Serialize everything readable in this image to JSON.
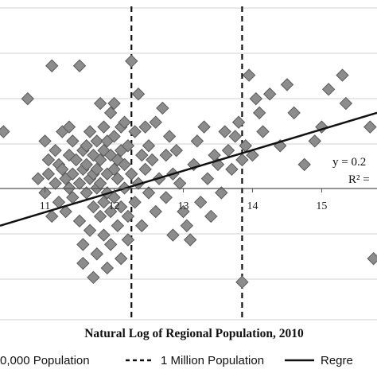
{
  "chart_data": {
    "type": "scatter",
    "xlabel": "Natural Log of Regional Population, 2010",
    "x_ticks": [
      "11",
      "12",
      "13",
      "14",
      "15"
    ],
    "xlim": [
      10.35,
      15.8
    ],
    "ylim": [
      -1.45,
      1.95
    ],
    "grid": "horizontal",
    "reference_lines": [
      {
        "name": "1 Million Population",
        "x": 12.25,
        "style": "dashed"
      },
      {
        "name": "",
        "x": 13.85,
        "style": "dashed"
      }
    ],
    "regression": {
      "name": "Regression",
      "x": [
        10.35,
        15.8
      ],
      "y": [
        -0.45,
        0.75
      ]
    },
    "annotations": [
      "y = 0.2",
      "R² ="
    ],
    "legend": {
      "position": "bottom",
      "entries": [
        {
          "label": "0,000 Population",
          "style": "marker"
        },
        {
          "label": "1 Million Population",
          "style": "dashed"
        },
        {
          "label": "Regre",
          "style": "solid"
        }
      ]
    },
    "colors": {
      "marker_fill": "#8c8c8c",
      "marker_stroke": "#5a5a5a",
      "line": "#111111",
      "grid": "#d0d0d0"
    },
    "series": [
      {
        "name": "",
        "points": [
          [
            10.4,
            0.55
          ],
          [
            10.75,
            0.9
          ],
          [
            10.9,
            0.05
          ],
          [
            11.0,
            -0.1
          ],
          [
            11.0,
            0.45
          ],
          [
            11.05,
            0.25
          ],
          [
            11.05,
            0.1
          ],
          [
            11.1,
            1.25
          ],
          [
            11.1,
            -0.35
          ],
          [
            11.15,
            0.35
          ],
          [
            11.15,
            0.0
          ],
          [
            11.2,
            0.2
          ],
          [
            11.2,
            -0.2
          ],
          [
            11.25,
            0.55
          ],
          [
            11.25,
            0.15
          ],
          [
            11.3,
            -0.3
          ],
          [
            11.3,
            0.05
          ],
          [
            11.35,
            0.3
          ],
          [
            11.35,
            -0.05
          ],
          [
            11.35,
            0.6
          ],
          [
            11.4,
            0.45
          ],
          [
            11.4,
            -0.15
          ],
          [
            11.4,
            0.1
          ],
          [
            11.45,
            0.25
          ],
          [
            11.5,
            0.0
          ],
          [
            11.5,
            -0.4
          ],
          [
            11.5,
            1.25
          ],
          [
            11.55,
            0.15
          ],
          [
            11.55,
            -0.65
          ],
          [
            11.55,
            0.35
          ],
          [
            11.55,
            -0.85
          ],
          [
            11.6,
            0.4
          ],
          [
            11.6,
            0.2
          ],
          [
            11.6,
            -0.1
          ],
          [
            11.65,
            0.05
          ],
          [
            11.65,
            -0.5
          ],
          [
            11.65,
            0.55
          ],
          [
            11.7,
            0.3
          ],
          [
            11.7,
            -0.25
          ],
          [
            11.7,
            0.1
          ],
          [
            11.7,
            -1.0
          ],
          [
            11.75,
            0.45
          ],
          [
            11.75,
            0.15
          ],
          [
            11.75,
            -0.05
          ],
          [
            11.75,
            -0.75
          ],
          [
            11.8,
            0.85
          ],
          [
            11.8,
            0.25
          ],
          [
            11.8,
            -0.35
          ],
          [
            11.8,
            0.0
          ],
          [
            11.85,
            0.35
          ],
          [
            11.85,
            -0.2
          ],
          [
            11.85,
            0.6
          ],
          [
            11.85,
            -0.55
          ],
          [
            11.9,
            0.1
          ],
          [
            11.9,
            0.45
          ],
          [
            11.9,
            -0.1
          ],
          [
            11.9,
            -0.9
          ],
          [
            11.95,
            0.3
          ],
          [
            11.95,
            0.75
          ],
          [
            11.95,
            -0.3
          ],
          [
            11.95,
            -0.65
          ],
          [
            12.0,
            0.5
          ],
          [
            12.0,
            0.15
          ],
          [
            12.0,
            -0.15
          ],
          [
            12.0,
            0.85
          ],
          [
            12.05,
            0.25
          ],
          [
            12.05,
            -0.45
          ],
          [
            12.05,
            0.05
          ],
          [
            12.1,
            0.6
          ],
          [
            12.1,
            -0.25
          ],
          [
            12.1,
            0.35
          ],
          [
            12.1,
            -0.8
          ],
          [
            12.15,
            0.2
          ],
          [
            12.15,
            0.65
          ],
          [
            12.15,
            -0.05
          ],
          [
            12.2,
            0.4
          ],
          [
            12.2,
            -0.35
          ],
          [
            12.2,
            -0.6
          ],
          [
            12.25,
            1.3
          ],
          [
            12.25,
            0.1
          ],
          [
            12.3,
            0.55
          ],
          [
            12.3,
            -0.2
          ],
          [
            12.35,
            0.95
          ],
          [
            12.35,
            0.0
          ],
          [
            12.4,
            0.3
          ],
          [
            12.4,
            -0.45
          ],
          [
            12.45,
            0.15
          ],
          [
            12.45,
            0.6
          ],
          [
            12.5,
            -0.1
          ],
          [
            12.5,
            0.4
          ],
          [
            12.55,
            0.25
          ],
          [
            12.6,
            -0.3
          ],
          [
            12.6,
            0.65
          ],
          [
            12.65,
            0.05
          ],
          [
            12.7,
            0.8
          ],
          [
            12.75,
            0.3
          ],
          [
            12.75,
            -0.15
          ],
          [
            12.8,
            0.5
          ],
          [
            12.85,
            0.1
          ],
          [
            12.85,
            -0.55
          ],
          [
            12.9,
            0.35
          ],
          [
            12.95,
            0.0
          ],
          [
            13.0,
            -0.3
          ],
          [
            13.05,
            -0.45
          ],
          [
            13.1,
            -0.6
          ],
          [
            13.15,
            0.2
          ],
          [
            13.2,
            0.45
          ],
          [
            13.25,
            -0.2
          ],
          [
            13.3,
            0.6
          ],
          [
            13.35,
            0.05
          ],
          [
            13.4,
            -0.35
          ],
          [
            13.45,
            0.3
          ],
          [
            13.5,
            0.2
          ],
          [
            13.55,
            -0.1
          ],
          [
            13.6,
            0.55
          ],
          [
            13.65,
            0.35
          ],
          [
            13.7,
            0.15
          ],
          [
            13.75,
            0.5
          ],
          [
            13.8,
            0.65
          ],
          [
            13.85,
            0.25
          ],
          [
            13.85,
            -1.05
          ],
          [
            13.9,
            0.4
          ],
          [
            13.95,
            1.15
          ],
          [
            14.0,
            0.3
          ],
          [
            14.05,
            0.9
          ],
          [
            14.1,
            0.75
          ],
          [
            14.15,
            0.55
          ],
          [
            14.25,
            0.95
          ],
          [
            14.4,
            0.4
          ],
          [
            14.5,
            1.05
          ],
          [
            14.6,
            0.75
          ],
          [
            14.75,
            0.2
          ],
          [
            14.9,
            0.45
          ],
          [
            15.0,
            0.6
          ],
          [
            15.1,
            1.0
          ],
          [
            15.3,
            1.15
          ],
          [
            15.35,
            0.85
          ],
          [
            15.7,
            0.6
          ],
          [
            15.75,
            -0.8
          ]
        ]
      }
    ]
  }
}
